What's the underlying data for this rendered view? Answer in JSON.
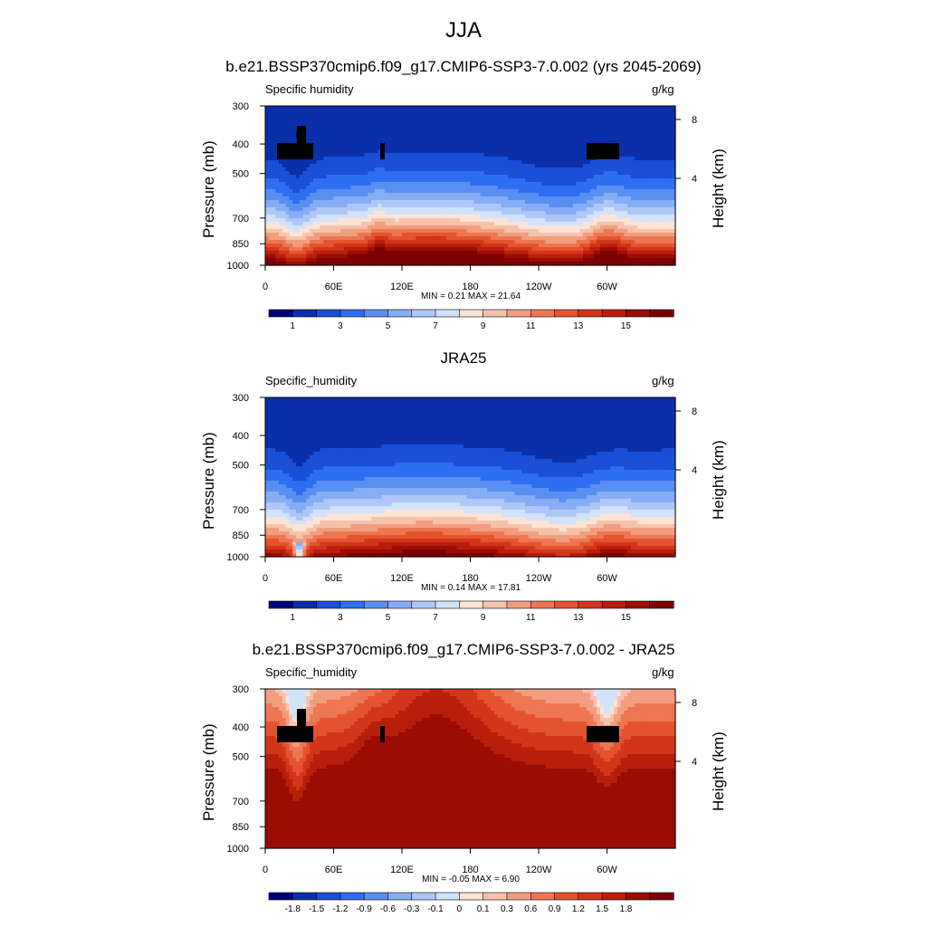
{
  "figure": {
    "title": "JJA"
  },
  "colors": {
    "main_levels": [
      0.001,
      1,
      2,
      3,
      4,
      5,
      6,
      7,
      8,
      9,
      10,
      11,
      12,
      13,
      14,
      15,
      16
    ],
    "palette": [
      "#00007a",
      "#0a2fa8",
      "#1a4fd6",
      "#2e6ef0",
      "#5a8ff2",
      "#86adf5",
      "#adc8f8",
      "#d3e2fb",
      "#fbe4d4",
      "#f7c2ab",
      "#f29d80",
      "#ec7752",
      "#e4532f",
      "#d2361a",
      "#b81e0c",
      "#9a0d04",
      "#7c0000"
    ],
    "diff_levels": [
      -1.8,
      -1.5,
      -1.2,
      -0.9,
      -0.6,
      -0.3,
      -0.1,
      0,
      0.1,
      0.3,
      0.6,
      0.9,
      1.2,
      1.5,
      1.8
    ],
    "mask": "#000000"
  },
  "panels": [
    {
      "title": "b.e21.BSSP370cmip6.f09_g17.CMIP6-SSP3-7.0.002 (yrs 2045-2069)",
      "left_label": "Specific humidity",
      "right_label": "g/kg",
      "minmax": "MIN =   0.21  MAX =  21.64",
      "colorbar_labels": [
        "1",
        "3",
        "5",
        "7",
        "9",
        "11",
        "13",
        "15"
      ]
    },
    {
      "title": "JRA25",
      "left_label": "Specific_humidity",
      "right_label": "g/kg",
      "minmax": "MIN =   0.14  MAX =  17.81",
      "colorbar_labels": [
        "1",
        "3",
        "5",
        "7",
        "9",
        "11",
        "13",
        "15"
      ]
    },
    {
      "title": "b.e21.BSSP370cmip6.f09_g17.CMIP6-SSP3-7.0.002 - JRA25",
      "left_label": "Specific_humidity",
      "right_label": "g/kg",
      "minmax": "MIN =  -0.05  MAX =   6.90",
      "colorbar_labels": [
        "-1.8",
        "-1.5",
        "-1.2",
        "-0.9",
        "-0.6",
        "-0.3",
        "-0.1",
        "0",
        "0.1",
        "0.3",
        "0.6",
        "0.9",
        "1.2",
        "1.5",
        "1.8"
      ]
    }
  ],
  "axes": {
    "ylabel": "Pressure (mb)",
    "y2label": "Height (km)",
    "yticks": [
      "300",
      "400",
      "500",
      "700",
      "850",
      "1000"
    ],
    "xticks": [
      "0",
      "60E",
      "120E",
      "180",
      "120W",
      "60W"
    ],
    "y2ticks": [
      "8",
      "4"
    ]
  },
  "chart_data": [
    {
      "type": "heatmap",
      "title": "b.e21.BSSP370cmip6.f09_g17.CMIP6-SSP3-7.0.002 (yrs 2045-2069)",
      "variable": "Specific humidity",
      "units": "g/kg",
      "x": [
        "0",
        "60E",
        "120E",
        "180",
        "120W",
        "60W"
      ],
      "y": [
        300,
        400,
        500,
        700,
        850,
        1000
      ],
      "levels": [
        1,
        2,
        3,
        4,
        5,
        6,
        7,
        8,
        9,
        10,
        11,
        12,
        13,
        14,
        15,
        16
      ],
      "min": 0.21,
      "max": 21.64
    },
    {
      "type": "heatmap",
      "title": "JRA25",
      "variable": "Specific_humidity",
      "units": "g/kg",
      "x": [
        "0",
        "60E",
        "120E",
        "180",
        "120W",
        "60W"
      ],
      "y": [
        300,
        400,
        500,
        700,
        850,
        1000
      ],
      "levels": [
        1,
        2,
        3,
        4,
        5,
        6,
        7,
        8,
        9,
        10,
        11,
        12,
        13,
        14,
        15,
        16
      ],
      "min": 0.14,
      "max": 17.81
    },
    {
      "type": "heatmap",
      "title": "b.e21.BSSP370cmip6.f09_g17.CMIP6-SSP3-7.0.002 - JRA25",
      "variable": "Specific_humidity",
      "units": "g/kg",
      "x": [
        "0",
        "60E",
        "120E",
        "180",
        "120W",
        "60W"
      ],
      "y": [
        300,
        400,
        500,
        700,
        850,
        1000
      ],
      "levels": [
        -1.8,
        -1.5,
        -1.2,
        -0.9,
        -0.6,
        -0.3,
        -0.1,
        0,
        0.1,
        0.3,
        0.6,
        0.9,
        1.2,
        1.5,
        1.8
      ],
      "min": -0.05,
      "max": 6.9
    }
  ]
}
